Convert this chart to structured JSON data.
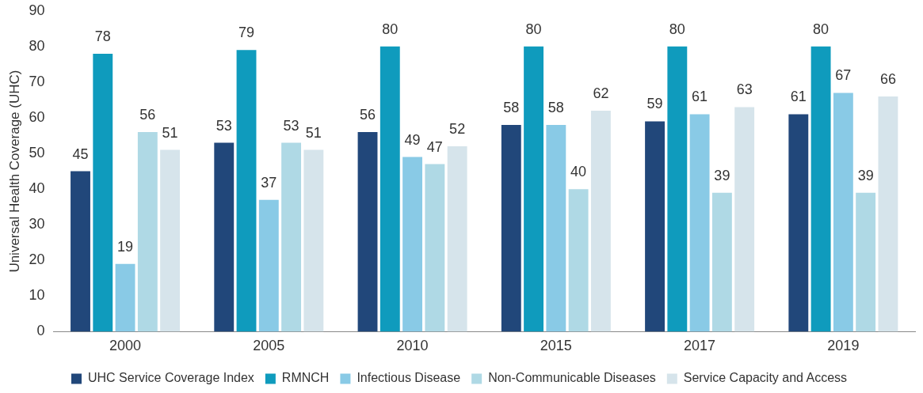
{
  "chart_data": {
    "type": "bar",
    "ylabel": "Universal Health Coverage (UHC)",
    "categories": [
      "2000",
      "2005",
      "2010",
      "2015",
      "2017",
      "2019"
    ],
    "series": [
      {
        "name": "UHC Service Coverage Index",
        "color": "#21477a",
        "values": [
          45,
          53,
          56,
          58,
          59,
          61
        ]
      },
      {
        "name": "RMNCH",
        "color": "#0f9bbd",
        "values": [
          78,
          79,
          80,
          80,
          80,
          80
        ]
      },
      {
        "name": "Infectious Disease",
        "color": "#89cae6",
        "values": [
          19,
          37,
          49,
          58,
          61,
          67
        ]
      },
      {
        "name": "Non-Communicable Diseases",
        "color": "#afd9e5",
        "values": [
          56,
          53,
          47,
          40,
          39,
          39
        ]
      },
      {
        "name": "Service Capacity and Access",
        "color": "#d6e4eb",
        "values": [
          51,
          51,
          52,
          62,
          63,
          66
        ]
      }
    ],
    "ylim": [
      0,
      90
    ],
    "yticks": [
      0,
      10,
      20,
      30,
      40,
      50,
      60,
      70,
      80,
      90
    ],
    "grid": false,
    "legend": "bottom",
    "data_labels": true
  }
}
